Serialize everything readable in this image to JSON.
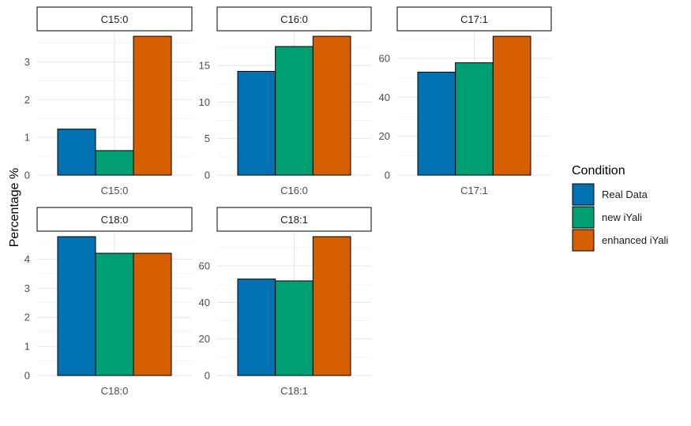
{
  "chart_data": {
    "type": "bar",
    "ylabel": "Percentage %",
    "legend": {
      "title": "Condition",
      "position": "right",
      "entries": [
        "Real Data",
        "new iYali",
        "enhanced iYali"
      ]
    },
    "colors": {
      "Real Data": "#0072B2",
      "new iYali": "#009E73",
      "enhanced iYali": "#D55E00"
    },
    "grid": true,
    "panels": [
      {
        "strip": "C15:0",
        "category": "C15:0",
        "series": [
          {
            "name": "Real Data",
            "value": 1.22
          },
          {
            "name": "new iYali",
            "value": 0.65
          },
          {
            "name": "enhanced iYali",
            "value": 3.68
          }
        ],
        "ylim": [
          0,
          3.68
        ],
        "yticks": [
          0,
          1,
          2,
          3
        ],
        "ytick_labels": [
          "0",
          "1",
          "2",
          "3"
        ]
      },
      {
        "strip": "C16:0",
        "category": "C16:0",
        "series": [
          {
            "name": "Real Data",
            "value": 14.2
          },
          {
            "name": "new iYali",
            "value": 17.6
          },
          {
            "name": "enhanced iYali",
            "value": 19.0
          }
        ],
        "ylim": [
          0,
          19.0
        ],
        "yticks": [
          0,
          5,
          10,
          15
        ],
        "ytick_labels": [
          "0",
          "5",
          "10",
          "15"
        ]
      },
      {
        "strip": "C17:1",
        "category": "C17:1",
        "series": [
          {
            "name": "Real Data",
            "value": 52.9
          },
          {
            "name": "new iYali",
            "value": 57.7
          },
          {
            "name": "enhanced iYali",
            "value": 71.3
          }
        ],
        "ylim": [
          0,
          71.3
        ],
        "yticks": [
          0,
          20,
          40,
          60
        ],
        "ytick_labels": [
          "0",
          "20",
          "40",
          "60"
        ]
      },
      {
        "strip": "C18:0",
        "category": "C18:0",
        "series": [
          {
            "name": "Real Data",
            "value": 4.77
          },
          {
            "name": "new iYali",
            "value": 4.2
          },
          {
            "name": "enhanced iYali",
            "value": 4.2
          }
        ],
        "ylim": [
          0,
          4.77
        ],
        "yticks": [
          0,
          1,
          2,
          3,
          4
        ],
        "ytick_labels": [
          "0",
          "1",
          "2",
          "3",
          "4"
        ]
      },
      {
        "strip": "C18:1",
        "category": "C18:1",
        "series": [
          {
            "name": "Real Data",
            "value": 52.8
          },
          {
            "name": "new iYali",
            "value": 51.8
          },
          {
            "name": "enhanced iYali",
            "value": 76.0
          }
        ],
        "ylim": [
          0,
          76.0
        ],
        "yticks": [
          0,
          20,
          40,
          60
        ],
        "ytick_labels": [
          "0",
          "20",
          "40",
          "60"
        ]
      }
    ]
  }
}
